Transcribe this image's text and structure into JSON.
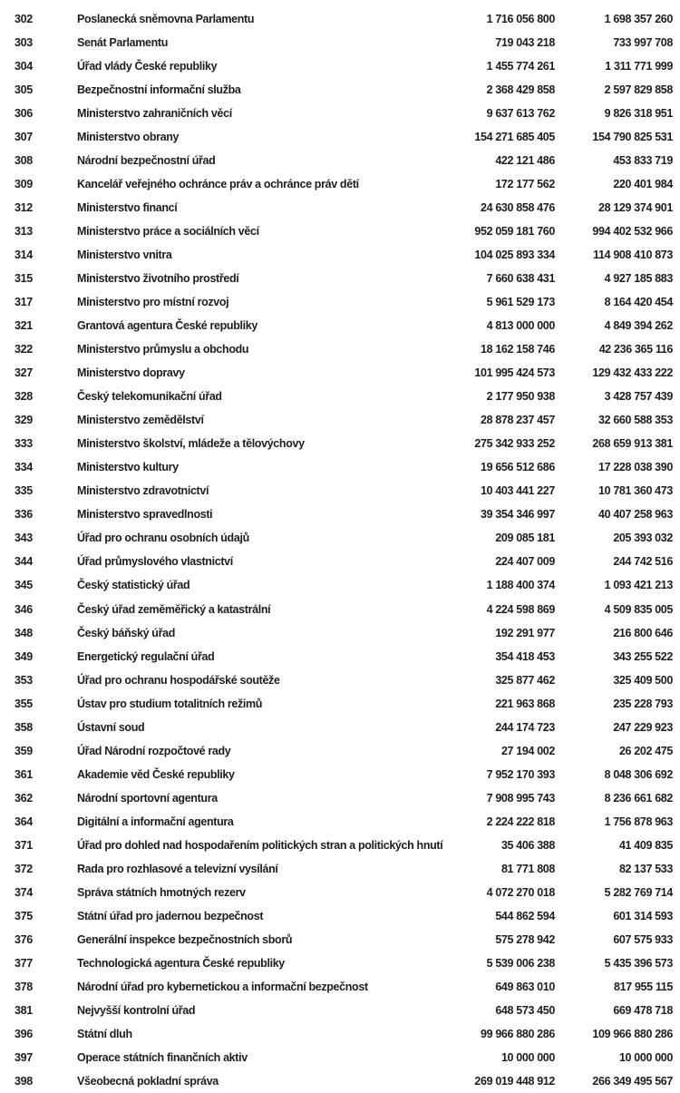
{
  "rows": [
    [
      "302",
      "Poslanecká sněmovna Parlamentu",
      "1 716 056 800",
      "1 698 357 260"
    ],
    [
      "303",
      "Senát Parlamentu",
      "719 043 218",
      "733 997 708"
    ],
    [
      "304",
      "Úřad vlády České republiky",
      "1 455 774 261",
      "1 311 771 999"
    ],
    [
      "305",
      "Bezpečnostní informační služba",
      "2 368 429 858",
      "2 597 829 858"
    ],
    [
      "306",
      "Ministerstvo zahraničních věcí",
      "9 637 613 762",
      "9 826 318 951"
    ],
    [
      "307",
      "Ministerstvo obrany",
      "154 271 685 405",
      "154 790 825 531"
    ],
    [
      "308",
      "Národní bezpečnostní úřad",
      "422 121 486",
      "453 833 719"
    ],
    [
      "309",
      "Kancelář veřejného ochránce práv a ochránce práv dětí",
      "172 177 562",
      "220 401 984"
    ],
    [
      "312",
      "Ministerstvo financí",
      "24 630 858 476",
      "28 129 374 901"
    ],
    [
      "313",
      "Ministerstvo práce a sociálních věcí",
      "952 059 181 760",
      "994 402 532 966"
    ],
    [
      "314",
      "Ministerstvo vnitra",
      "104 025 893 334",
      "114 908 410 873"
    ],
    [
      "315",
      "Ministerstvo životního prostředí",
      "7 660 638 431",
      "4 927 185 883"
    ],
    [
      "317",
      "Ministerstvo pro místní rozvoj",
      "5 961 529 173",
      "8 164 420 454"
    ],
    [
      "321",
      "Grantová agentura České republiky",
      "4 813 000 000",
      "4 849 394 262"
    ],
    [
      "322",
      "Ministerstvo průmyslu a obchodu",
      "18 162 158 746",
      "42 236 365 116"
    ],
    [
      "327",
      "Ministerstvo dopravy",
      "101 995 424 573",
      "129 432 433 222"
    ],
    [
      "328",
      "Český telekomunikační úřad",
      "2 177 950 938",
      "3 428 757 439"
    ],
    [
      "329",
      "Ministerstvo zemědělství",
      "28 878 237 457",
      "32 660 588 353"
    ],
    [
      "333",
      "Ministerstvo školství, mládeže a tělovýchovy",
      "275 342 933 252",
      "268 659 913 381"
    ],
    [
      "334",
      "Ministerstvo kultury",
      "19 656 512 686",
      "17 228 038 390"
    ],
    [
      "335",
      "Ministerstvo zdravotnictví",
      "10 403 441 227",
      "10 781 360 473"
    ],
    [
      "336",
      "Ministerstvo spravedlnosti",
      "39 354 346 997",
      "40 407 258 963"
    ],
    [
      "343",
      "Úřad pro ochranu osobních údajů",
      "209 085 181",
      "205 393 032"
    ],
    [
      "344",
      "Úřad průmyslového vlastnictví",
      "224 407 009",
      "244 742 516"
    ],
    [
      "345",
      "Český statistický úřad",
      "1 188 400 374",
      "1 093 421 213"
    ],
    [
      "346",
      "Český úřad zeměměřický a katastrální",
      "4 224 598 869",
      "4 509 835 005"
    ],
    [
      "348",
      "Český báňský úřad",
      "192 291 977",
      "216 800 646"
    ],
    [
      "349",
      "Energetický regulační úřad",
      "354 418 453",
      "343 255 522"
    ],
    [
      "353",
      "Úřad pro ochranu hospodářské soutěže",
      "325 877 462",
      "325 409 500"
    ],
    [
      "355",
      "Ústav pro studium totalitních režimů",
      "221 963 868",
      "235 228 793"
    ],
    [
      "358",
      "Ústavní soud",
      "244 174 723",
      "247 229 923"
    ],
    [
      "359",
      "Úřad Národní rozpočtové rady",
      "27 194 002",
      "26 202 475"
    ],
    [
      "361",
      "Akademie věd České republiky",
      "7 952 170 393",
      "8 048 306 692"
    ],
    [
      "362",
      "Národní sportovní agentura",
      "7 908 995 743",
      "8 236 661 682"
    ],
    [
      "364",
      "Digitální a informační agentura",
      "2 224 222 818",
      "1 756 878 963"
    ],
    [
      "371",
      "Úřad pro dohled nad hospodařením politických stran a politických hnutí",
      "35 406 388",
      "41 409 835"
    ],
    [
      "372",
      "Rada pro rozhlasové a televizní vysílání",
      "81 771 808",
      "82 137 533"
    ],
    [
      "374",
      "Správa státních hmotných rezerv",
      "4 072 270 018",
      "5 282 769 714"
    ],
    [
      "375",
      "Státní úřad pro jadernou bezpečnost",
      "544 862 594",
      "601 314 593"
    ],
    [
      "376",
      "Generální inspekce bezpečnostních sborů",
      "575 278 942",
      "607 575 933"
    ],
    [
      "377",
      "Technologická agentura České republiky",
      "5 539 006 238",
      "5 435 396 573"
    ],
    [
      "378",
      "Národní úřad pro kybernetickou a informační bezpečnost",
      "649 863 010",
      "817 955 115"
    ],
    [
      "381",
      "Nejvyšší kontrolní úřad",
      "648 573 450",
      "669 478 718"
    ],
    [
      "396",
      "Státní dluh",
      "99 966 880 286",
      "109 966 880 286"
    ],
    [
      "397",
      "Operace státních finančních aktiv",
      "10 000 000",
      "10 000 000"
    ],
    [
      "398",
      "Všeobecná pokladní správa",
      "269 019 448 912",
      "266 349 495 567"
    ]
  ]
}
